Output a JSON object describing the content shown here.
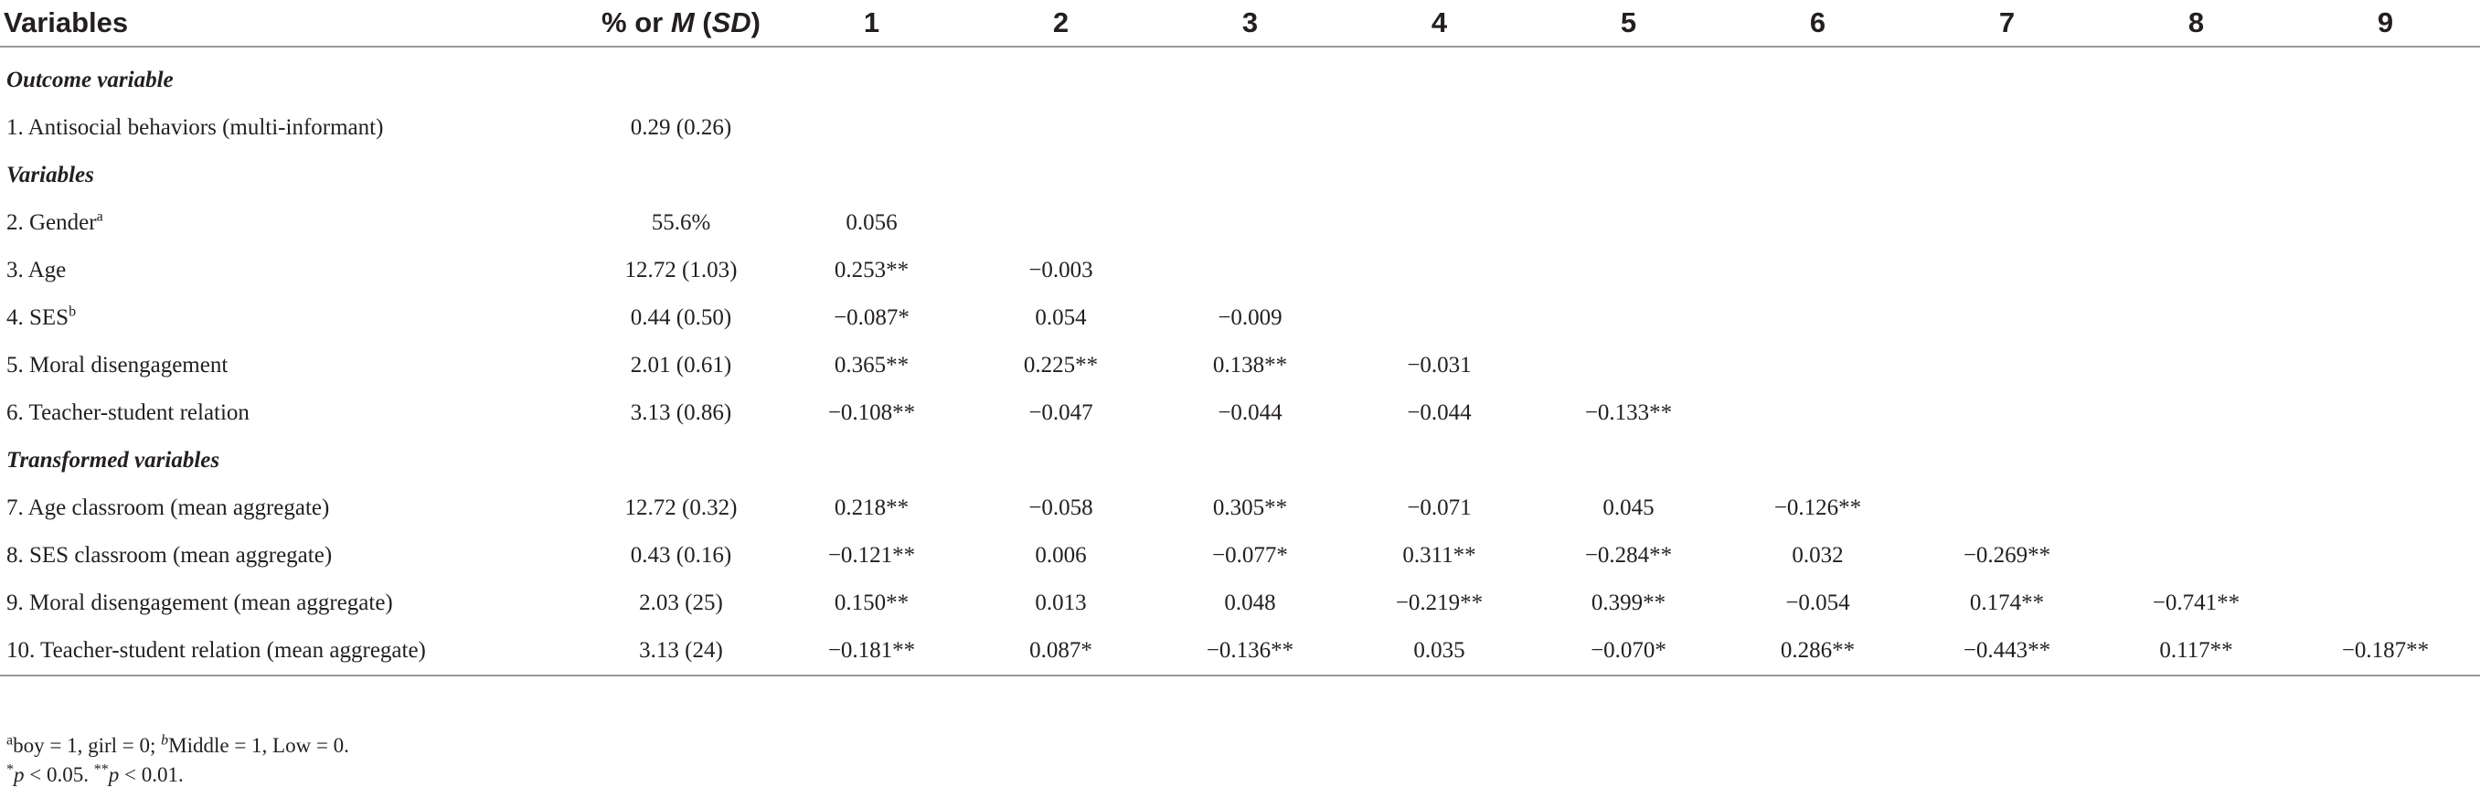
{
  "header": {
    "variables": "Variables",
    "stat_pre": "% or ",
    "stat_m": "M",
    "stat_mid": " (",
    "stat_sd": "SD",
    "stat_post": ")",
    "cols": [
      "1",
      "2",
      "3",
      "4",
      "5",
      "6",
      "7",
      "8",
      "9"
    ]
  },
  "sections": {
    "outcome": "Outcome variable",
    "variables": "Variables",
    "transformed": "Transformed variables"
  },
  "rows": [
    {
      "label": "1. Antisocial behaviors (multi-informant)",
      "sup": "",
      "stat": "0.29 (0.26)",
      "values": [
        "",
        "",
        "",
        "",
        "",
        "",
        "",
        "",
        ""
      ]
    },
    {
      "label": "2. Gender",
      "sup": "a",
      "stat": "55.6%",
      "values": [
        "0.056",
        "",
        "",
        "",
        "",
        "",
        "",
        "",
        ""
      ]
    },
    {
      "label": "3. Age",
      "sup": "",
      "stat": "12.72 (1.03)",
      "values": [
        "0.253**",
        "−0.003",
        "",
        "",
        "",
        "",
        "",
        "",
        ""
      ]
    },
    {
      "label": "4. SES",
      "sup": "b",
      "stat": "0.44 (0.50)",
      "values": [
        "−0.087*",
        "0.054",
        "−0.009",
        "",
        "",
        "",
        "",
        "",
        ""
      ]
    },
    {
      "label": "5. Moral disengagement",
      "sup": "",
      "stat": "2.01 (0.61)",
      "values": [
        "0.365**",
        "0.225**",
        "0.138**",
        "−0.031",
        "",
        "",
        "",
        "",
        ""
      ]
    },
    {
      "label": "6. Teacher-student relation",
      "sup": "",
      "stat": "3.13 (0.86)",
      "values": [
        "−0.108**",
        "−0.047",
        "−0.044",
        "−0.044",
        "−0.133**",
        "",
        "",
        "",
        ""
      ]
    },
    {
      "label": "7. Age classroom (mean aggregate)",
      "sup": "",
      "stat": "12.72 (0.32)",
      "values": [
        "0.218**",
        "−0.058",
        "0.305**",
        "−0.071",
        "0.045",
        "−0.126**",
        "",
        "",
        ""
      ]
    },
    {
      "label": "8. SES classroom (mean aggregate)",
      "sup": "",
      "stat": "0.43 (0.16)",
      "values": [
        "−0.121**",
        "0.006",
        "−0.077*",
        "0.311**",
        "−0.284**",
        "0.032",
        "−0.269**",
        "",
        ""
      ]
    },
    {
      "label": "9. Moral disengagement (mean aggregate)",
      "sup": "",
      "stat": "2.03 (25)",
      "values": [
        "0.150**",
        "0.013",
        "0.048",
        "−0.219**",
        "0.399**",
        "−0.054",
        "0.174**",
        "−0.741**",
        ""
      ]
    },
    {
      "label": "10. Teacher-student relation (mean aggregate)",
      "sup": "",
      "stat": "3.13 (24)",
      "values": [
        "−0.181**",
        "0.087*",
        "−0.136**",
        "0.035",
        "−0.070*",
        "0.286**",
        "−0.443**",
        "0.117**",
        "−0.187**"
      ]
    }
  ],
  "notes": {
    "sup_a": "a",
    "text_a": "boy = 1, girl = 0; ",
    "sup_b": "b",
    "text_b": "Middle = 1, Low = 0.",
    "star1": "*",
    "p1": "p",
    "text_p1": " < 0.05. ",
    "star2": "**",
    "p2": "p",
    "text_p2": " < 0.01."
  }
}
